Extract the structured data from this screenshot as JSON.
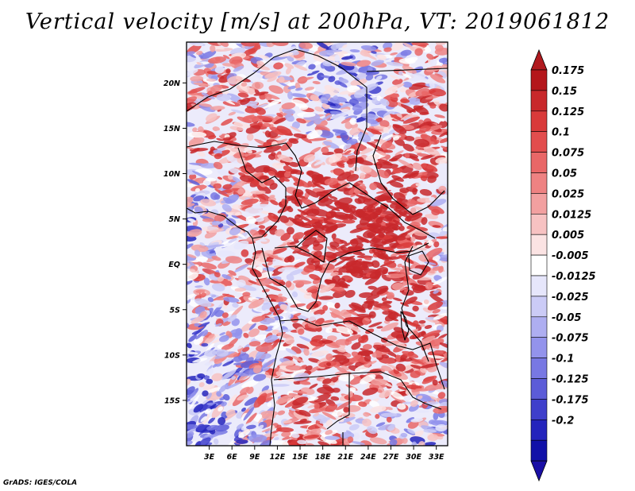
{
  "chart_data": {
    "type": "heatmap",
    "title": "Vertical velocity [m/s] at 200hPa, VT: 2019061812",
    "xlabel": "",
    "ylabel": "",
    "x_range": [
      0,
      34.5
    ],
    "y_range": [
      -20,
      24.5
    ],
    "x_ticks": [
      {
        "value": 3,
        "label": "3E"
      },
      {
        "value": 6,
        "label": "6E"
      },
      {
        "value": 9,
        "label": "9E"
      },
      {
        "value": 12,
        "label": "12E"
      },
      {
        "value": 15,
        "label": "15E"
      },
      {
        "value": 18,
        "label": "18E"
      },
      {
        "value": 21,
        "label": "21E"
      },
      {
        "value": 24,
        "label": "24E"
      },
      {
        "value": 27,
        "label": "27E"
      },
      {
        "value": 30,
        "label": "30E"
      },
      {
        "value": 33,
        "label": "33E"
      }
    ],
    "y_ticks": [
      {
        "value": 20,
        "label": "20N"
      },
      {
        "value": 15,
        "label": "15N"
      },
      {
        "value": 10,
        "label": "10N"
      },
      {
        "value": 5,
        "label": "5N"
      },
      {
        "value": 0,
        "label": "EQ"
      },
      {
        "value": -5,
        "label": "5S"
      },
      {
        "value": -10,
        "label": "10S"
      },
      {
        "value": -15,
        "label": "15S"
      }
    ],
    "colorbar": {
      "levels": [
        "0.175",
        "0.15",
        "0.125",
        "0.1",
        "0.075",
        "0.05",
        "0.025",
        "0.0125",
        "0.005",
        "-0.005",
        "-0.0125",
        "-0.025",
        "-0.05",
        "-0.075",
        "-0.1",
        "-0.125",
        "-0.175",
        "-0.2"
      ],
      "colors": [
        "#b4161b",
        "#c8282b",
        "#d93a3a",
        "#e24d4d",
        "#e96767",
        "#ee8282",
        "#f2a0a0",
        "#f7c2c2",
        "#fbe3e3",
        "#ffffff",
        "#e6e6fb",
        "#cbcbf6",
        "#aeaef1",
        "#9393ec",
        "#7878e3",
        "#5c5cd8",
        "#3f3fcb",
        "#2424bc",
        "#1111a8"
      ],
      "top_color": "#b01a1f",
      "bottom_color": "#1a0fa5"
    }
  },
  "credit": "GrADS: IGES/COLA"
}
